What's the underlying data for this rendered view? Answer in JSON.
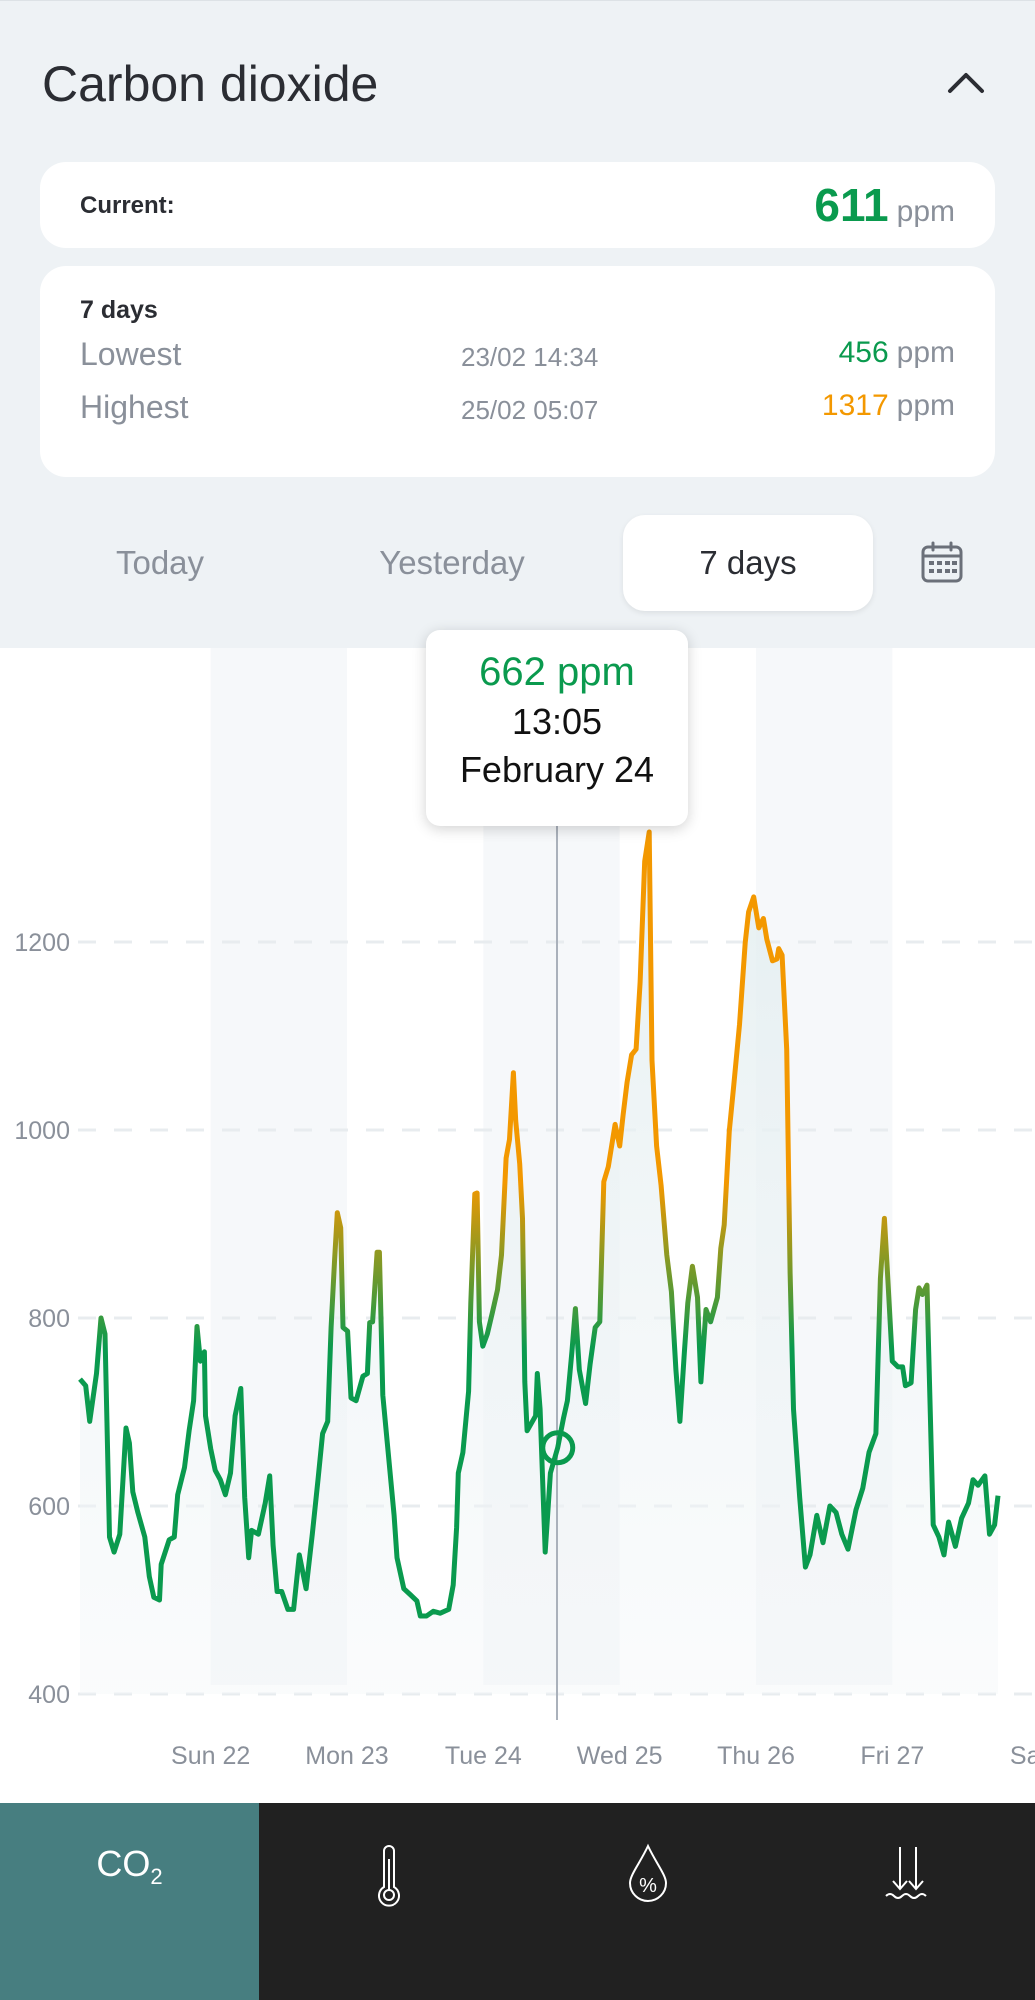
{
  "header": {
    "title": "Carbon dioxide"
  },
  "current": {
    "label": "Current:",
    "value": "611",
    "unit": "ppm"
  },
  "summary": {
    "period": "7 days",
    "lowest": {
      "label": "Lowest",
      "datetime": "23/02 14:34",
      "value": "456",
      "unit": "ppm"
    },
    "highest": {
      "label": "Highest",
      "datetime": "25/02 05:07",
      "value": "1317",
      "unit": "ppm"
    }
  },
  "tabs": [
    {
      "label": "Today"
    },
    {
      "label": "Yesterday"
    },
    {
      "label": "7 days",
      "selected": true
    }
  ],
  "tooltip": {
    "value": "662 ppm",
    "time": "13:05",
    "date": "February 24"
  },
  "colors": {
    "good": "#0a9a4e",
    "warn": "#f39800",
    "nav_selected": "#477e80",
    "nav_bg": "#212121"
  },
  "nav": {
    "items": [
      {
        "label": "CO",
        "sub": "2",
        "icon": "co2",
        "selected": true
      },
      {
        "icon": "thermometer-icon"
      },
      {
        "icon": "humidity-icon"
      },
      {
        "icon": "pressure-icon"
      }
    ]
  },
  "chart_data": {
    "type": "line",
    "xlabel": "",
    "ylabel": "ppm",
    "ylim": [
      400,
      1300
    ],
    "yticks": [
      400,
      600,
      800,
      1000,
      1200
    ],
    "x_unit": "hours since Sat 21 01:00",
    "xticks": [
      {
        "label": "Sun 22",
        "hour": 23
      },
      {
        "label": "Mon 23",
        "hour": 47
      },
      {
        "label": "Tue 24",
        "hour": 71
      },
      {
        "label": "Wed 25",
        "hour": 95
      },
      {
        "label": "Thu 26",
        "hour": 119
      },
      {
        "label": "Fri 27",
        "hour": 143
      },
      {
        "label": "Sat",
        "hour": 167
      }
    ],
    "selected_point": {
      "hour": 84.1,
      "value": 662
    },
    "points": [
      [
        0,
        735
      ],
      [
        1,
        728
      ],
      [
        1.7,
        690
      ],
      [
        2.9,
        741
      ],
      [
        3.7,
        800
      ],
      [
        4.4,
        783
      ],
      [
        5.2,
        567
      ],
      [
        6,
        551
      ],
      [
        7,
        570
      ],
      [
        8.1,
        683
      ],
      [
        8.7,
        667
      ],
      [
        9.3,
        615
      ],
      [
        10.2,
        593
      ],
      [
        11.4,
        567
      ],
      [
        12.2,
        525
      ],
      [
        13,
        503
      ],
      [
        14,
        500
      ],
      [
        14.3,
        538
      ],
      [
        15.7,
        564
      ],
      [
        16.6,
        567
      ],
      [
        17.2,
        612
      ],
      [
        18.4,
        641
      ],
      [
        19.2,
        680
      ],
      [
        20,
        712
      ],
      [
        20.6,
        791
      ],
      [
        21.2,
        754
      ],
      [
        21.9,
        764
      ],
      [
        22.1,
        696
      ],
      [
        23,
        661
      ],
      [
        23.8,
        638
      ],
      [
        24.7,
        628
      ],
      [
        25.6,
        612
      ],
      [
        26.5,
        635
      ],
      [
        27.3,
        696
      ],
      [
        28.3,
        725
      ],
      [
        29,
        609
      ],
      [
        29.7,
        545
      ],
      [
        30.2,
        574
      ],
      [
        31.4,
        570
      ],
      [
        32.6,
        603
      ],
      [
        33.4,
        632
      ],
      [
        34,
        558
      ],
      [
        34.7,
        509
      ],
      [
        35.5,
        509
      ],
      [
        36.6,
        490
      ],
      [
        37.6,
        490
      ],
      [
        38.6,
        548
      ],
      [
        39.8,
        512
      ],
      [
        40.9,
        570
      ],
      [
        41.9,
        628
      ],
      [
        42.7,
        677
      ],
      [
        43.6,
        690
      ],
      [
        44.2,
        790
      ],
      [
        44.8,
        860
      ],
      [
        45.3,
        912
      ],
      [
        45.9,
        896
      ],
      [
        46.3,
        790
      ],
      [
        47.1,
        786
      ],
      [
        47.7,
        715
      ],
      [
        48.6,
        712
      ],
      [
        49.8,
        738
      ],
      [
        50.6,
        741
      ],
      [
        51,
        795
      ],
      [
        51.5,
        796
      ],
      [
        52.3,
        870
      ],
      [
        52.7,
        870
      ],
      [
        53.3,
        718
      ],
      [
        54.1,
        667
      ],
      [
        55.3,
        590
      ],
      [
        55.8,
        545
      ],
      [
        57,
        512
      ],
      [
        58.1,
        506
      ],
      [
        59.3,
        499
      ],
      [
        59.9,
        483
      ],
      [
        61,
        483
      ],
      [
        62.2,
        488
      ],
      [
        63.4,
        486
      ],
      [
        64.9,
        490
      ],
      [
        65.7,
        516
      ],
      [
        66.3,
        577
      ],
      [
        66.6,
        635
      ],
      [
        67.4,
        657
      ],
      [
        68.4,
        722
      ],
      [
        68.8,
        816
      ],
      [
        69.5,
        932
      ],
      [
        69.9,
        933
      ],
      [
        70.3,
        796
      ],
      [
        70.9,
        770
      ],
      [
        71.7,
        783
      ],
      [
        72.6,
        806
      ],
      [
        73.5,
        830
      ],
      [
        74.2,
        867
      ],
      [
        75,
        970
      ],
      [
        75.6,
        990
      ],
      [
        76.3,
        1061
      ],
      [
        76.7,
        1010
      ],
      [
        77.4,
        964
      ],
      [
        77.9,
        906
      ],
      [
        78.3,
        732
      ],
      [
        78.7,
        680
      ],
      [
        80.2,
        696
      ],
      [
        80.5,
        741
      ],
      [
        81,
        703
      ],
      [
        81.9,
        551
      ],
      [
        82.8,
        635
      ],
      [
        84.1,
        662
      ],
      [
        85.1,
        693
      ],
      [
        85.8,
        712
      ],
      [
        86.6,
        764
      ],
      [
        87.2,
        810
      ],
      [
        87.9,
        745
      ],
      [
        89,
        709
      ],
      [
        89.8,
        751
      ],
      [
        90.7,
        790
      ],
      [
        91.5,
        796
      ],
      [
        92.2,
        945
      ],
      [
        93,
        961
      ],
      [
        94.2,
        1006
      ],
      [
        95,
        983
      ],
      [
        95.6,
        1016
      ],
      [
        96.3,
        1051
      ],
      [
        97.1,
        1080
      ],
      [
        97.9,
        1086
      ],
      [
        98.6,
        1157
      ],
      [
        99.4,
        1286
      ],
      [
        100.2,
        1317
      ],
      [
        100.7,
        1074
      ],
      [
        101.5,
        983
      ],
      [
        102.3,
        941
      ],
      [
        103.3,
        867
      ],
      [
        104.1,
        828
      ],
      [
        104.9,
        745
      ],
      [
        105.6,
        690
      ],
      [
        106.4,
        764
      ],
      [
        107,
        816
      ],
      [
        107.8,
        855
      ],
      [
        108.7,
        822
      ],
      [
        109.3,
        732
      ],
      [
        110.2,
        809
      ],
      [
        111,
        796
      ],
      [
        112.2,
        822
      ],
      [
        112.8,
        874
      ],
      [
        113.4,
        899
      ],
      [
        114.3,
        999
      ],
      [
        115.1,
        1048
      ],
      [
        116.1,
        1112
      ],
      [
        117.1,
        1199
      ],
      [
        117.7,
        1232
      ],
      [
        118.6,
        1248
      ],
      [
        119.5,
        1215
      ],
      [
        120.3,
        1225
      ],
      [
        120.9,
        1203
      ],
      [
        121.9,
        1180
      ],
      [
        122.7,
        1182
      ],
      [
        123,
        1193
      ],
      [
        123.6,
        1186
      ],
      [
        124.4,
        1086
      ],
      [
        125,
        848
      ],
      [
        125.6,
        703
      ],
      [
        126.7,
        609
      ],
      [
        127.7,
        535
      ],
      [
        128.5,
        548
      ],
      [
        129.7,
        590
      ],
      [
        130.8,
        561
      ],
      [
        132,
        600
      ],
      [
        133.1,
        593
      ],
      [
        134.1,
        570
      ],
      [
        135.2,
        554
      ],
      [
        136.6,
        596
      ],
      [
        137.8,
        619
      ],
      [
        138.9,
        657
      ],
      [
        140.1,
        677
      ],
      [
        140.9,
        842
      ],
      [
        141.6,
        906
      ],
      [
        142.2,
        842
      ],
      [
        143,
        754
      ],
      [
        144,
        748
      ],
      [
        144.8,
        748
      ],
      [
        145.3,
        728
      ],
      [
        146.3,
        731
      ],
      [
        147.1,
        809
      ],
      [
        147.7,
        832
      ],
      [
        148.3,
        825
      ],
      [
        149.1,
        835
      ],
      [
        149.4,
        764
      ],
      [
        150.2,
        580
      ],
      [
        151.2,
        567
      ],
      [
        152.1,
        548
      ],
      [
        152.9,
        583
      ],
      [
        154.1,
        557
      ],
      [
        155.2,
        587
      ],
      [
        156.4,
        603
      ],
      [
        157.2,
        628
      ],
      [
        158.1,
        622
      ],
      [
        159.3,
        632
      ],
      [
        160.1,
        570
      ],
      [
        161,
        580
      ],
      [
        161.6,
        611
      ]
    ]
  }
}
